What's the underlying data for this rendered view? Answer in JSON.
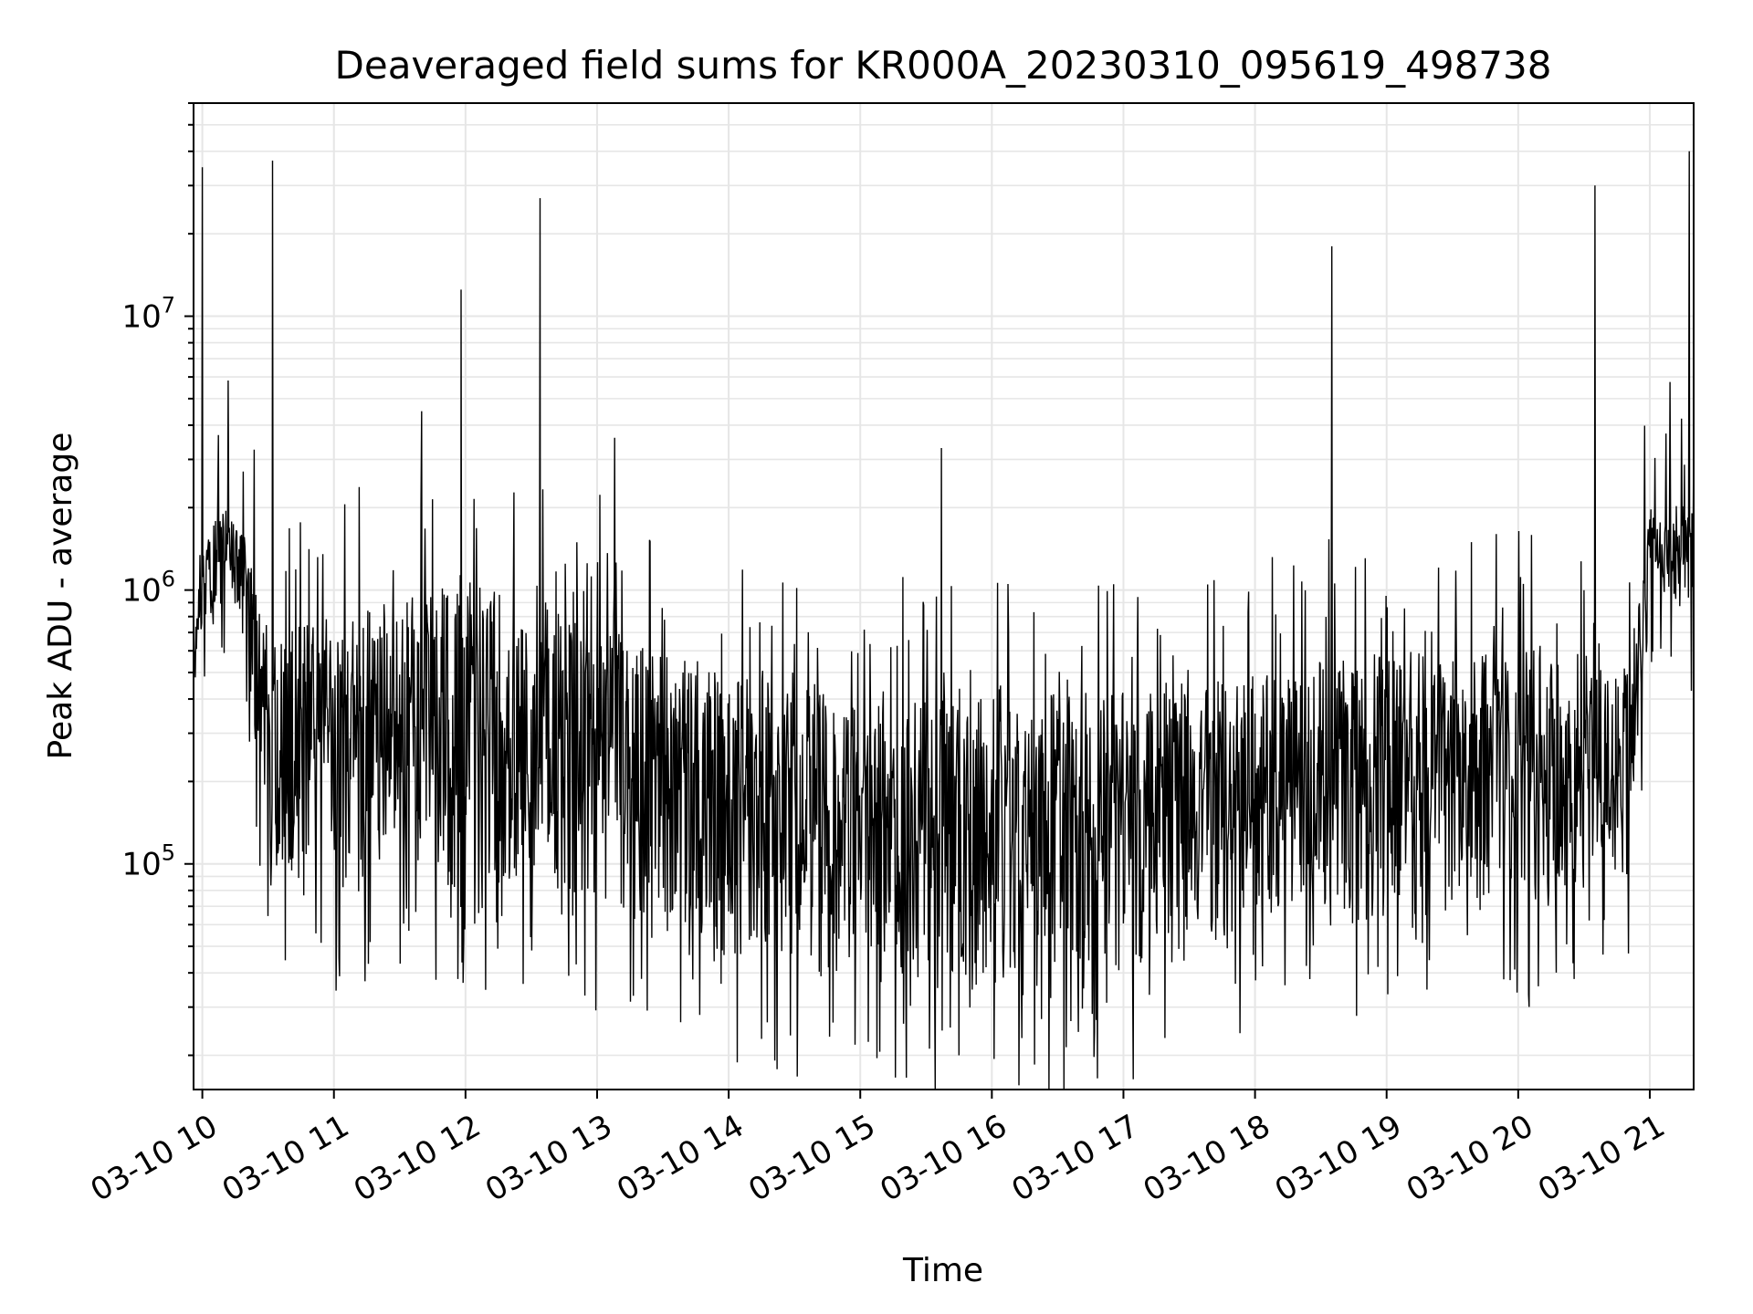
{
  "chart_data": {
    "type": "line",
    "title": "Deaveraged field sums for KR000A_20230310_095619_498738",
    "xlabel": "Time",
    "ylabel": "Peak ADU - average",
    "x_start": "2023-03-10 09:56",
    "x_end": "2023-03-10 21:20",
    "xlim": [
      "2023-03-10 09:56",
      "2023-03-10 21:20"
    ],
    "ylim": [
      15000,
      60000000
    ],
    "yscale": "log",
    "grid": true,
    "x_tick_labels": [
      "03-10 10",
      "03-10 11",
      "03-10 12",
      "03-10 13",
      "03-10 14",
      "03-10 15",
      "03-10 16",
      "03-10 17",
      "03-10 18",
      "03-10 19",
      "03-10 20",
      "03-10 21"
    ],
    "y_ticks": [
      {
        "value": 100000,
        "base": "10",
        "exp": "5"
      },
      {
        "value": 1000000,
        "base": "10",
        "exp": "6"
      },
      {
        "value": 10000000,
        "base": "10",
        "exp": "7"
      }
    ],
    "series_color": "#000000",
    "grid_color": "#e6e6e6",
    "spikes": [
      {
        "time": "2023-03-10 10:00",
        "value": 35000000
      },
      {
        "time": "2023-03-10 10:32",
        "value": 37000000
      },
      {
        "time": "2023-03-10 11:58",
        "value": 12500000
      },
      {
        "time": "2023-03-10 12:34",
        "value": 27000000
      },
      {
        "time": "2023-03-10 18:35",
        "value": 18000000
      },
      {
        "time": "2023-03-10 20:35",
        "value": 30000000
      },
      {
        "time": "2023-03-10 21:18",
        "value": 40000000
      },
      {
        "time": "2023-03-10 11:40",
        "value": 4500000
      },
      {
        "time": "2023-03-10 13:08",
        "value": 3600000
      },
      {
        "time": "2023-03-10 15:37",
        "value": 3300000
      }
    ],
    "envelope": [
      {
        "time": "2023-03-10 09:56",
        "upper": 1200000,
        "lower": 400000
      },
      {
        "time": "2023-03-10 10:10",
        "upper": 2200000,
        "lower": 1200000
      },
      {
        "time": "2023-03-10 10:20",
        "upper": 1600000,
        "lower": 600000
      },
      {
        "time": "2023-03-10 10:30",
        "upper": 700000,
        "lower": 100000
      },
      {
        "time": "2023-03-10 11:00",
        "upper": 800000,
        "lower": 75000
      },
      {
        "time": "2023-03-10 12:00",
        "upper": 1100000,
        "lower": 80000
      },
      {
        "time": "2023-03-10 13:00",
        "upper": 800000,
        "lower": 65000
      },
      {
        "time": "2023-03-10 14:00",
        "upper": 500000,
        "lower": 40000
      },
      {
        "time": "2023-03-10 15:00",
        "upper": 400000,
        "lower": 35000
      },
      {
        "time": "2023-03-10 16:00",
        "upper": 400000,
        "lower": 30000
      },
      {
        "time": "2023-03-10 17:00",
        "upper": 450000,
        "lower": 35000
      },
      {
        "time": "2023-03-10 18:00",
        "upper": 500000,
        "lower": 55000
      },
      {
        "time": "2023-03-10 19:00",
        "upper": 600000,
        "lower": 60000
      },
      {
        "time": "2023-03-10 20:00",
        "upper": 600000,
        "lower": 65000
      },
      {
        "time": "2023-03-10 20:50",
        "upper": 500000,
        "lower": 90000
      },
      {
        "time": "2023-03-10 21:00",
        "upper": 2000000,
        "lower": 1000000
      },
      {
        "time": "2023-03-10 21:20",
        "upper": 2200000,
        "lower": 800000
      }
    ]
  }
}
